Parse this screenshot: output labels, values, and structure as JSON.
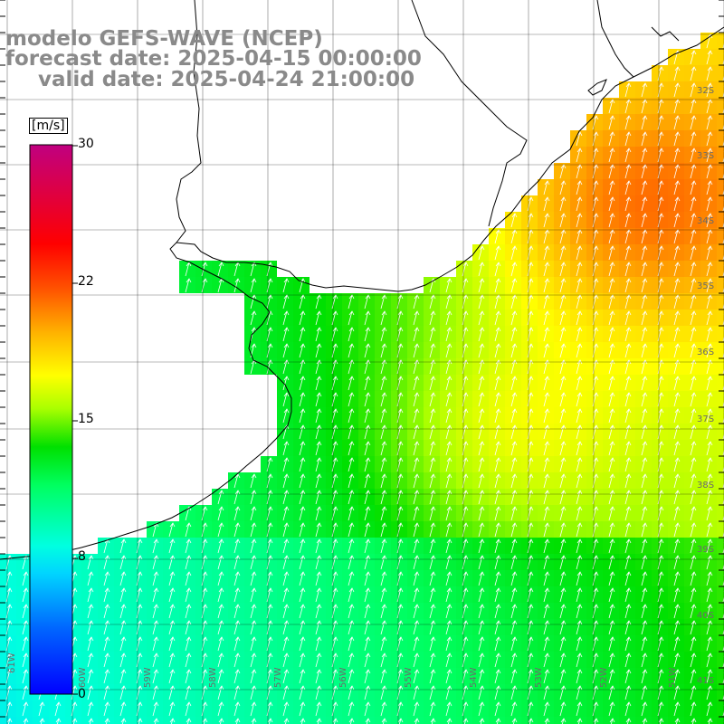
{
  "title": {
    "line1": "modelo GEFS-WAVE (NCEP)",
    "line2": "forecast date: 2025-04-15 00:00:00",
    "line3": "valid date: 2025-04-24 21:00:00"
  },
  "colorbar": {
    "unit": "[m/s]",
    "ticks": [
      "30",
      "22",
      "15",
      "8",
      "0"
    ],
    "tick_values": [
      30,
      22,
      15,
      8,
      0
    ],
    "min": 0,
    "max": 30
  },
  "lat_labels": [
    "32S",
    "33S",
    "34S",
    "35S",
    "36S",
    "37S",
    "38S",
    "39S",
    "40S",
    "41S"
  ],
  "lon_labels": [
    "61W",
    "60W",
    "59W",
    "58W",
    "57W",
    "56W",
    "55W",
    "54W",
    "53W",
    "52W",
    "51W"
  ],
  "colors": {
    "land": "#ffffff",
    "grid": "#000000",
    "coast": "#000000",
    "arrows": "#ffffff"
  }
}
